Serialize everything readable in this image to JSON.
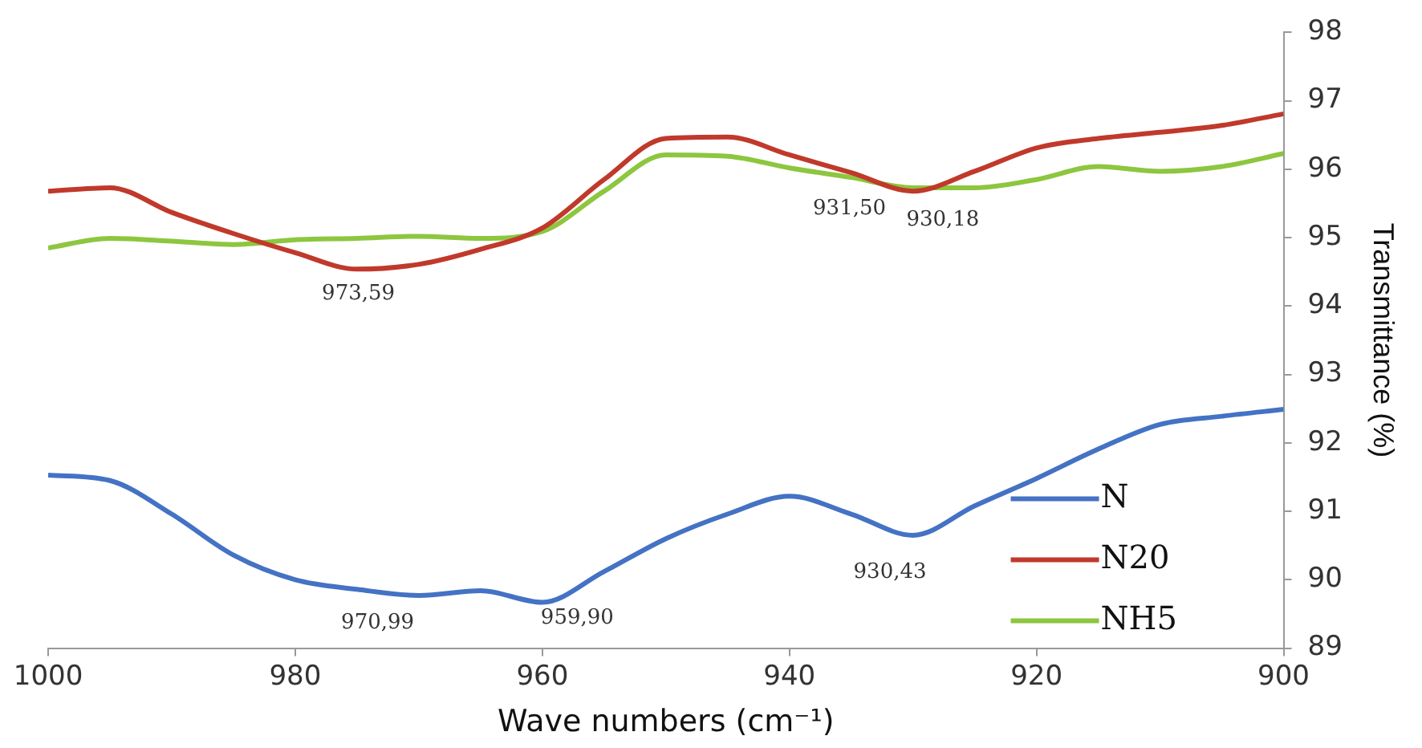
{
  "chart_data": {
    "type": "line",
    "xlabel": "Wave numbers (cm⁻¹)",
    "ylabel": "Transmittance (%)",
    "x": [
      1000,
      995,
      990,
      985,
      980,
      975,
      970,
      965,
      960,
      955,
      950,
      945,
      940,
      935,
      930,
      925,
      920,
      915,
      910,
      905,
      900
    ],
    "series": [
      {
        "name": "N",
        "color": "#4472c4",
        "values": [
          91.53,
          91.45,
          90.96,
          90.36,
          90.0,
          89.86,
          89.77,
          89.84,
          89.67,
          90.12,
          90.6,
          90.96,
          91.22,
          90.96,
          90.65,
          91.08,
          91.48,
          91.91,
          92.27,
          92.39,
          92.49
        ]
      },
      {
        "name": "N20",
        "color": "#c0392b",
        "values": [
          95.68,
          95.73,
          95.37,
          95.06,
          94.78,
          94.54,
          94.61,
          94.83,
          95.14,
          95.85,
          96.45,
          96.47,
          96.21,
          95.95,
          95.68,
          95.97,
          96.31,
          96.45,
          96.54,
          96.64,
          96.81
        ]
      },
      {
        "name": "NH5",
        "color": "#8dc63f",
        "values": [
          94.85,
          94.99,
          94.95,
          94.9,
          94.97,
          94.99,
          95.02,
          94.99,
          95.09,
          95.68,
          96.21,
          96.19,
          96.02,
          95.88,
          95.73,
          95.73,
          95.85,
          96.04,
          95.97,
          96.04,
          96.23
        ]
      }
    ],
    "xlim": [
      1000,
      900
    ],
    "xticks": [
      1000,
      980,
      960,
      940,
      920,
      900
    ],
    "ylim": [
      89,
      98
    ],
    "yticks": [
      89,
      90,
      91,
      92,
      93,
      94,
      95,
      96,
      97,
      98
    ],
    "grid": false,
    "legend": "bottom right",
    "marker": "none",
    "line_style": "solid",
    "annotations": [
      {
        "text": "973,59",
        "x": 973.59,
        "y": 94.55
      },
      {
        "text": "931,50",
        "x": 931.5,
        "y": 95.75
      },
      {
        "text": "930,18",
        "x": 930.18,
        "y": 95.68
      },
      {
        "text": "970,99",
        "x": 970.99,
        "y": 89.77
      },
      {
        "text": "959,90",
        "x": 959.9,
        "y": 89.67
      },
      {
        "text": "930,43",
        "x": 930.43,
        "y": 90.65
      }
    ]
  }
}
